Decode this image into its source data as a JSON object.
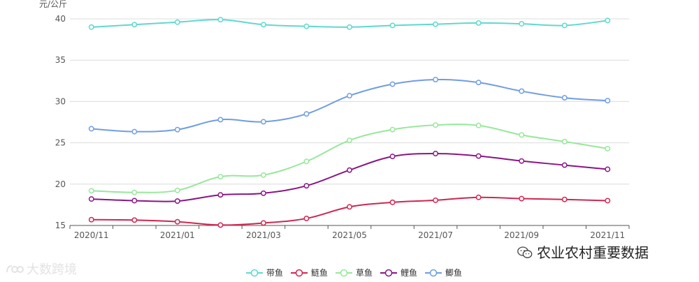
{
  "chart_data": {
    "type": "line",
    "ylabel": "元/公斤",
    "ylim": [
      15,
      40
    ],
    "yticks": [
      15,
      20,
      25,
      30,
      35,
      40
    ],
    "x": [
      "2020/11",
      "2020/12",
      "2021/01",
      "2021/02",
      "2021/03",
      "2021/04",
      "2021/05",
      "2021/06",
      "2021/07",
      "2021/08",
      "2021/09",
      "2021/10",
      "2021/11"
    ],
    "xtick_labels": [
      "2020/11",
      "2021/01",
      "2021/03",
      "2021/05",
      "2021/07",
      "2021/09",
      "2021/11"
    ],
    "grid": true,
    "legend_position": "bottom",
    "series": [
      {
        "name": "带鱼",
        "color": "#5fd9cc",
        "values": [
          39.0,
          39.3,
          39.6,
          39.9,
          39.3,
          39.1,
          39.0,
          39.2,
          39.35,
          39.5,
          39.4,
          39.2,
          39.8
        ]
      },
      {
        "name": "鲢鱼",
        "color": "#d02650",
        "values": [
          15.7,
          15.65,
          15.45,
          15.05,
          15.3,
          15.85,
          17.25,
          17.8,
          18.05,
          18.4,
          18.25,
          18.15,
          18.0
        ]
      },
      {
        "name": "草鱼",
        "color": "#97e89a",
        "values": [
          19.2,
          19.0,
          19.25,
          20.9,
          21.1,
          22.75,
          25.3,
          26.6,
          27.15,
          27.1,
          25.95,
          25.15,
          24.3
        ]
      },
      {
        "name": "鲤鱼",
        "color": "#8a1585",
        "values": [
          18.2,
          18.0,
          17.95,
          18.7,
          18.9,
          19.8,
          21.7,
          23.35,
          23.7,
          23.4,
          22.8,
          22.3,
          21.8
        ]
      },
      {
        "name": "鲫鱼",
        "color": "#6f9de2",
        "values": [
          26.7,
          26.35,
          26.6,
          27.8,
          27.55,
          28.5,
          30.7,
          32.1,
          32.65,
          32.3,
          31.25,
          30.45,
          30.1
        ]
      }
    ]
  },
  "watermarks": {
    "right_text": "农业农村重要数据",
    "left_text": "大数跨境"
  }
}
